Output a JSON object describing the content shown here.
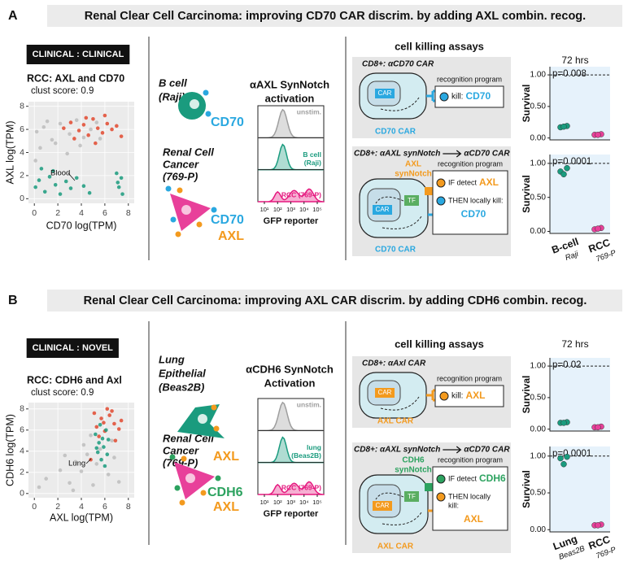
{
  "panels": [
    {
      "letter": "A",
      "title": "Renal Clear Cell Carcinoma:  improving CD70 CAR discrim. by adding AXL combin. recog.",
      "badge": [
        "CLINICAL",
        ":",
        "CLINICAL"
      ],
      "scatter": {
        "type": "scatter",
        "title": "RCC:  AXL and CD70",
        "subtitle": "clust score: 0.9",
        "x_label": "CD70 log(TPM)",
        "y_label": "AXL log(TPM)",
        "annotation": "Blood",
        "xlim": [
          -0.5,
          8.5
        ],
        "ylim": [
          -0.4,
          8.4
        ],
        "xticks": [
          0,
          2,
          4,
          6,
          8
        ],
        "yticks": [
          0,
          2,
          4,
          6,
          8
        ],
        "grid": true,
        "series": [
          {
            "color": "#bdbdbd",
            "x": [
              0.2,
              0.8,
              1.5,
              2.2,
              3.0,
              3.6,
              4.2,
              4.8,
              5.3,
              0.5,
              1.8,
              2.8,
              3.9,
              5.6,
              1.1,
              0.1
            ],
            "y": [
              5.8,
              6.2,
              5.1,
              6.5,
              5.6,
              6.8,
              5.3,
              6.0,
              6.6,
              4.4,
              4.8,
              3.9,
              4.6,
              5.2,
              6.7,
              3.3
            ]
          },
          {
            "color": "#e2492f",
            "x": [
              2.5,
              3.1,
              3.8,
              4.2,
              4.6,
              5.0,
              5.4,
              5.8,
              6.2,
              6.6,
              7.0,
              7.4,
              4.4,
              5.2,
              6.0,
              3.4
            ],
            "y": [
              6.1,
              6.6,
              5.9,
              6.4,
              5.5,
              6.9,
              6.1,
              5.7,
              6.5,
              6.0,
              6.3,
              5.4,
              7.0,
              4.8,
              7.2,
              5.2
            ]
          },
          {
            "color": "#1a9b7e",
            "x": [
              0.1,
              0.4,
              0.9,
              1.3,
              1.8,
              2.2,
              2.7,
              3.1,
              3.6,
              4.2,
              4.7,
              7.0,
              7.2,
              7.4,
              7.5,
              0.6,
              1.6,
              7.1
            ],
            "y": [
              1.0,
              1.6,
              0.6,
              1.9,
              1.2,
              0.4,
              1.5,
              0.9,
              1.8,
              1.1,
              0.5,
              2.2,
              1.0,
              1.8,
              0.4,
              2.6,
              2.4,
              1.4
            ]
          }
        ]
      },
      "cells": {
        "first": {
          "lines": [
            "B cell",
            "(Raji)"
          ],
          "color": "#1a9b7e",
          "markers": [
            {
              "text": "CD70",
              "color": "#2aa8e0"
            }
          ]
        },
        "second": {
          "lines": [
            "Renal Cell",
            "Cancer",
            "(769-P)"
          ],
          "color": "#e8409a",
          "markers": [
            {
              "text": "CD70",
              "color": "#2aa8e0"
            },
            {
              "text": "AXL",
              "color": "#f39a1e"
            }
          ]
        }
      },
      "histogram": {
        "title": [
          "αAXL SynNotch",
          "activation"
        ],
        "tracks": [
          {
            "label": [
              "unstim."
            ],
            "color": "#9e9e9e"
          },
          {
            "label": [
              "B cell",
              "(Raji)"
            ],
            "color": "#1a9b7e"
          },
          {
            "label": [
              "RCC (769-P)"
            ],
            "color": "#e5197f"
          }
        ],
        "xticks": [
          "10¹",
          "10²",
          "10³",
          "10⁴",
          "10⁵"
        ],
        "x_label": "GFP reporter"
      },
      "killing": {
        "heading": "cell killing assays",
        "single": {
          "header": "CD8+:  αCD70 CAR",
          "car": "CAR",
          "program": "recognition program",
          "kill": "kill:",
          "target": {
            "text": "CD70",
            "color": "#2aa8e0"
          },
          "receptor": "CD70 CAR"
        },
        "combo": {
          "header": [
            "CD8+: αAXL synNotch",
            "αCD70 CAR"
          ],
          "synnotch": {
            "lines": [
              "AXL",
              "synNotch"
            ],
            "color": "#f39a1e"
          },
          "tf": "TF",
          "car": "CAR",
          "program": "recognition program",
          "if": "IF detect",
          "if_target": {
            "text": "AXL",
            "color": "#f39a1e"
          },
          "then": [
            "THEN locally kill:"
          ],
          "then_target": {
            "text": "CD70",
            "color": "#2aa8e0"
          },
          "receptor": "CD70 CAR"
        }
      },
      "survival": {
        "time": "72 hrs",
        "y_label": "Survival",
        "categories": [
          "B-cell",
          "RCC"
        ],
        "sublabels": [
          "Raji",
          "769-P"
        ],
        "colors": [
          "#1a9b7e",
          "#e8409a"
        ],
        "charts": [
          {
            "type": "dot",
            "label": "p=0.008",
            "ylim": [
              -0.03,
              1.13
            ],
            "yticks": [
              {
                "value": 0,
                "label": "0.00"
              },
              {
                "value": 0.5,
                "label": "0.50"
              },
              {
                "value": 1,
                "label": "1.00"
              }
            ],
            "values": [
              [
                0.17,
                0.19,
                0.18
              ],
              [
                0.05,
                0.06,
                0.05
              ]
            ]
          },
          {
            "type": "dot",
            "label": "p=0.0001",
            "ylim": [
              -0.03,
              1.13
            ],
            "yticks": [
              {
                "value": 0,
                "label": "0.00"
              },
              {
                "value": 0.5,
                "label": "0.50"
              },
              {
                "value": 1,
                "label": "1.00"
              }
            ],
            "values": [
              [
                0.88,
                0.93,
                0.84
              ],
              [
                0.03,
                0.05,
                0.04
              ]
            ]
          }
        ]
      }
    },
    {
      "letter": "B",
      "title": "Renal Clear Cell Carcinoma:  improving AXL CAR discrim. by adding CDH6 combin. recog.",
      "badge": [
        "CLINICAL",
        ":",
        "NOVEL"
      ],
      "scatter": {
        "type": "scatter",
        "title": "RCC:  CDH6 and Axl",
        "subtitle": "clust score: 0.9",
        "x_label": "AXL log(TPM)",
        "y_label": "CDH6 log(TPM)",
        "annotation": "Lung",
        "xlim": [
          -0.5,
          8.5
        ],
        "ylim": [
          -0.4,
          8.6
        ],
        "xticks": [
          0,
          2,
          4,
          6,
          8
        ],
        "yticks": [
          0,
          2,
          4,
          6,
          8
        ],
        "grid": true,
        "series": [
          {
            "color": "#bdbdbd",
            "x": [
              1.0,
              2.2,
              3.0,
              3.5,
              4.0,
              4.5,
              5.0,
              5.3,
              6.3,
              6.8,
              7.2,
              2.6,
              4.2,
              5.6,
              3.3,
              0.4,
              6.6,
              4.8
            ],
            "y": [
              1.4,
              2.2,
              1.0,
              3.0,
              2.1,
              3.7,
              0.8,
              2.8,
              1.8,
              3.4,
              1.1,
              3.6,
              4.6,
              4.2,
              0.3,
              0.6,
              5.0,
              5.5
            ]
          },
          {
            "color": "#e2492f",
            "x": [
              5.3,
              5.7,
              6.0,
              6.4,
              6.8,
              7.2,
              5.5,
              6.2,
              6.6,
              7.4,
              5.9,
              4.8,
              6.9,
              5.1
            ],
            "y": [
              6.3,
              7.1,
              5.9,
              7.4,
              6.6,
              6.1,
              5.4,
              8.0,
              7.8,
              6.9,
              6.7,
              3.2,
              5.0,
              7.6
            ]
          },
          {
            "color": "#1a9b7e",
            "x": [
              5.2,
              5.5,
              5.8,
              6.1,
              5.4,
              5.9,
              6.3,
              5.7,
              6.0,
              5.6,
              5.3,
              6.2
            ],
            "y": [
              5.6,
              4.8,
              5.2,
              6.0,
              3.9,
              4.4,
              5.1,
              3.2,
              2.6,
              6.5,
              4.3,
              3.7
            ]
          }
        ]
      },
      "cells": {
        "first": {
          "lines": [
            "Lung",
            "Epithelial",
            "(Beas2B)"
          ],
          "color": "#1a9b7e",
          "markers": [
            {
              "text": "AXL",
              "color": "#f39a1e"
            }
          ]
        },
        "second": {
          "lines": [
            "Renal Cell",
            "Cancer",
            "(769-P)"
          ],
          "color": "#e8409a",
          "markers": [
            {
              "text": "CDH6",
              "color": "#2ca25f"
            },
            {
              "text": "AXL",
              "color": "#f39a1e"
            }
          ]
        }
      },
      "histogram": {
        "title": [
          "αCDH6 SynNotch",
          "Activation"
        ],
        "tracks": [
          {
            "label": [
              "unstim."
            ],
            "color": "#9e9e9e"
          },
          {
            "label": [
              "lung",
              "(Beas2B)"
            ],
            "color": "#1a9b7e"
          },
          {
            "label": [
              "RCC (769-P)"
            ],
            "color": "#e5197f"
          }
        ],
        "xticks": [
          "10¹",
          "10²",
          "10³",
          "10⁴",
          "10⁵"
        ],
        "x_label": "GFP reporter"
      },
      "killing": {
        "heading": "cell killing assays",
        "single": {
          "header": "CD8+: αAxl CAR",
          "car": "CAR",
          "program": "recognition program",
          "kill": "kill:",
          "target": {
            "text": "AXL",
            "color": "#f39a1e"
          },
          "receptor": "AXL CAR"
        },
        "combo": {
          "header": [
            "CD8+: αAXL synNotch",
            "αCD70 CAR"
          ],
          "synnotch": {
            "lines": [
              "CDH6",
              "synNotch"
            ],
            "color": "#2ca25f"
          },
          "tf": "TF",
          "car": "CAR",
          "program": "recognition program",
          "if": "IF detect",
          "if_target": {
            "text": "CDH6",
            "color": "#2ca25f"
          },
          "then": [
            "THEN locally",
            "kill:"
          ],
          "then_target": {
            "text": "AXL",
            "color": "#f39a1e"
          },
          "receptor": "AXL CAR"
        }
      },
      "survival": {
        "time": "72 hrs",
        "y_label": "Survival",
        "categories": [
          "Lung",
          "RCC"
        ],
        "sublabels": [
          "Beas2B",
          "769-P"
        ],
        "colors": [
          "#1a9b7e",
          "#e8409a"
        ],
        "charts": [
          {
            "type": "dot",
            "label": "p=0.02",
            "ylim": [
              -0.03,
              1.13
            ],
            "yticks": [
              {
                "value": 0,
                "label": "0.00"
              },
              {
                "value": 0.5,
                "label": "0.50"
              },
              {
                "value": 1,
                "label": "1.00"
              }
            ],
            "values": [
              [
                0.1,
                0.11,
                0.1
              ],
              [
                0.03,
                0.04,
                0.03
              ]
            ]
          },
          {
            "type": "dot",
            "label": "p=0.0001",
            "ylim": [
              -0.03,
              1.13
            ],
            "yticks": [
              {
                "value": 0,
                "label": "0.00"
              },
              {
                "value": 0.5,
                "label": "0.50"
              },
              {
                "value": 1,
                "label": "1.00"
              }
            ],
            "values": [
              [
                0.97,
                0.99,
                0.89
              ],
              [
                0.06,
                0.07,
                0.06
              ]
            ]
          }
        ]
      }
    }
  ]
}
